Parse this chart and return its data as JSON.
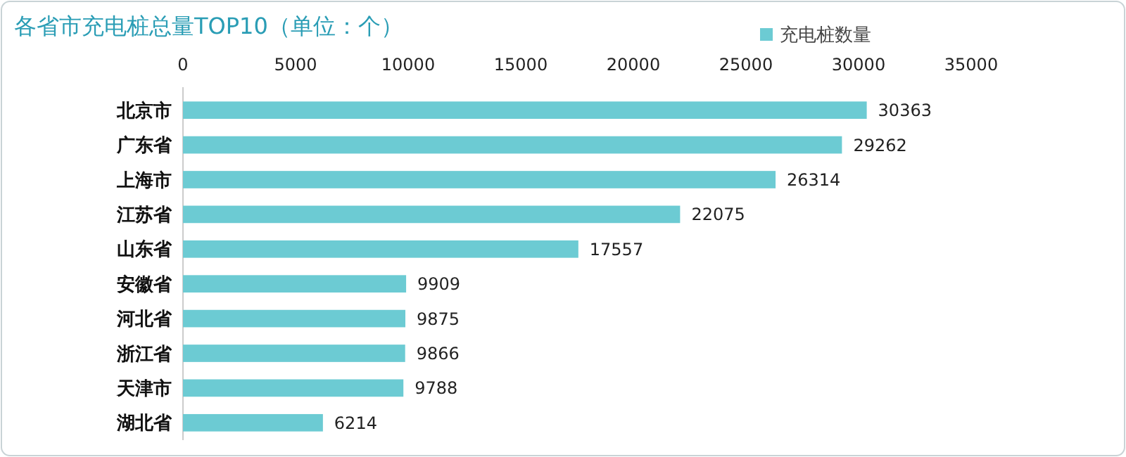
{
  "chart_data": {
    "type": "bar",
    "orientation": "horizontal",
    "title": "各省市充电桩总量TOP10（单位：个）",
    "categories": [
      "北京市",
      "广东省",
      "上海市",
      "江苏省",
      "山东省",
      "安徽省",
      "河北省",
      "浙江省",
      "天津市",
      "湖北省"
    ],
    "series": [
      {
        "name": "充电桩数量",
        "color": "#6ccbd3",
        "values": [
          30363,
          29262,
          26314,
          22075,
          17557,
          9909,
          9875,
          9866,
          9788,
          6214
        ]
      }
    ],
    "xlim": [
      0,
      35000
    ],
    "xticks": [
      0,
      5000,
      10000,
      15000,
      20000,
      25000,
      30000,
      35000
    ],
    "data_labels": true,
    "legend": "top right",
    "grid": false
  }
}
